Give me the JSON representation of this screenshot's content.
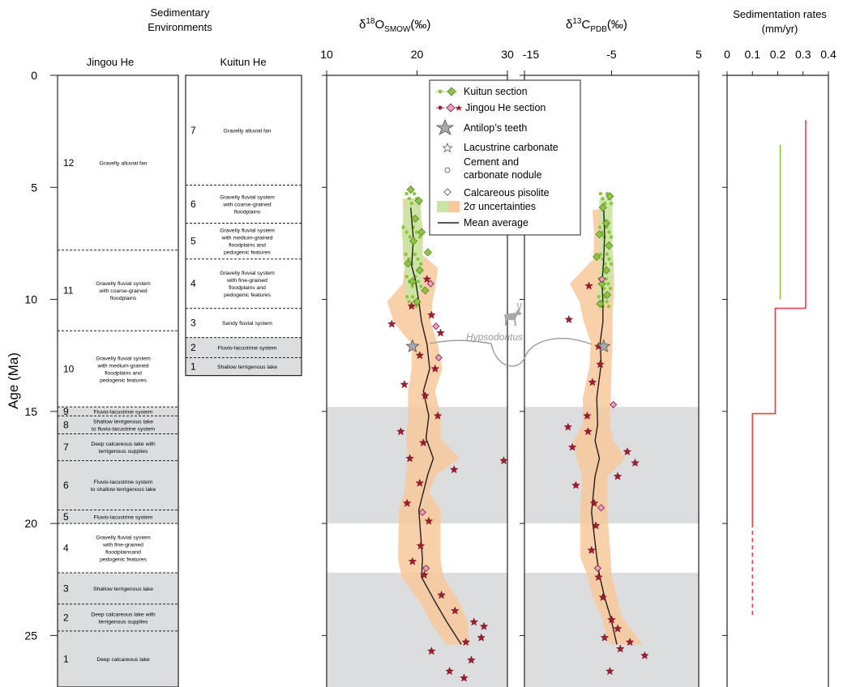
{
  "headers": {
    "sed_env_line1": "Sedimentary",
    "sed_env_line2": "Environments",
    "jingou": "Jingou He",
    "kuitun": "Kuitun He",
    "d18o": "δ18OSMOW(‰)",
    "d13c": "δ13CPDB(‰)",
    "sed_rates_line1": "Sedimentation rates",
    "sed_rates_line2": "(mm/yr)",
    "age_axis": "Age (Ma)"
  },
  "age_ticks": [
    "0",
    "5",
    "10",
    "15",
    "20",
    "25"
  ],
  "jingou_units": [
    {
      "num": "12",
      "text": [
        "Gravelly alluvial fan"
      ],
      "top": 0,
      "bottom": 7.8,
      "shade": false
    },
    {
      "num": "11",
      "text": [
        "Gravelly fluvial system",
        "with coarse-grained",
        "floodplains"
      ],
      "top": 7.8,
      "bottom": 11.4,
      "shade": false
    },
    {
      "num": "10",
      "text": [
        "Gravelly fluvial system",
        "with medium-grained",
        "floodplains and",
        "pedogenic features"
      ],
      "top": 11.4,
      "bottom": 14.8,
      "shade": false
    },
    {
      "num": "9",
      "text": [
        "Fluvio-lacustrine system"
      ],
      "top": 14.8,
      "bottom": 15.2,
      "shade": true
    },
    {
      "num": "8",
      "text": [
        "Shallow terrigenous lake",
        "to fluvio-lacustrine system"
      ],
      "top": 15.2,
      "bottom": 16.0,
      "shade": true
    },
    {
      "num": "7",
      "text": [
        "Deep calcareous lake with",
        "terrigenous supplies"
      ],
      "top": 16.0,
      "bottom": 17.2,
      "shade": true
    },
    {
      "num": "6",
      "text": [
        "Fluvio-lacustrine system",
        "to shallow terrigenous lake"
      ],
      "top": 17.2,
      "bottom": 19.4,
      "shade": true
    },
    {
      "num": "5",
      "text": [
        "Fluvio-lacustrine system"
      ],
      "top": 19.4,
      "bottom": 20.0,
      "shade": true
    },
    {
      "num": "4",
      "text": [
        "Gravelly fluvial system",
        "with fine-grained",
        "floodplainsand",
        "pedogenic features"
      ],
      "top": 20.0,
      "bottom": 22.2,
      "shade": false
    },
    {
      "num": "3",
      "text": [
        "Shallow terrigenous lake"
      ],
      "top": 22.2,
      "bottom": 23.6,
      "shade": true
    },
    {
      "num": "2",
      "text": [
        "Deep calcareous lake with",
        "terrigenous supplies"
      ],
      "top": 23.6,
      "bottom": 24.8,
      "shade": true
    },
    {
      "num": "1",
      "text": [
        "Deep calcareous lake"
      ],
      "top": 24.8,
      "bottom": 27.3,
      "shade": true
    }
  ],
  "kuitun_units": [
    {
      "num": "7",
      "text": [
        "Gravelly alluvial fan"
      ],
      "top": 0,
      "bottom": 4.9,
      "shade": false
    },
    {
      "num": "6",
      "text": [
        "Gravelly fluvial system",
        "with coarse-grained",
        "floodplains"
      ],
      "top": 4.9,
      "bottom": 6.6,
      "shade": false
    },
    {
      "num": "5",
      "text": [
        "Gravelly fluvial system",
        "with medium-grained",
        "floodplains and",
        "pedogenic features"
      ],
      "top": 6.6,
      "bottom": 8.2,
      "shade": false
    },
    {
      "num": "4",
      "text": [
        "Gravelly fluvial system",
        "with fine-grained",
        "floodplains and",
        "pedogenic features"
      ],
      "top": 8.2,
      "bottom": 10.4,
      "shade": false
    },
    {
      "num": "3",
      "text": [
        "Sandy fluvial system"
      ],
      "top": 10.4,
      "bottom": 11.7,
      "shade": false
    },
    {
      "num": "2",
      "text": [
        "Fluvio-lacustrine system"
      ],
      "top": 11.7,
      "bottom": 12.6,
      "shade": true
    },
    {
      "num": "1",
      "text": [
        "Shallow terrigenous lake"
      ],
      "top": 12.6,
      "bottom": 13.4,
      "shade": true
    }
  ],
  "chart_data": [
    {
      "type": "scatter",
      "title": "δ18O SMOW (‰)",
      "xlabel": "δ18O SMOW (‰)",
      "ylabel": "Age (Ma)",
      "xlim": [
        10,
        30
      ],
      "ylim": [
        0,
        27.3
      ],
      "x_ticks": [
        "10",
        "20",
        "30"
      ],
      "series": [
        {
          "name": "Kuitun section",
          "color": "#8cc63f",
          "marker": "diamond",
          "points": [
            [
              19.3,
              5.1
            ],
            [
              20.2,
              5.6
            ],
            [
              19.8,
              6.4
            ],
            [
              20.5,
              7.0
            ],
            [
              19.6,
              7.4
            ],
            [
              21.2,
              7.9
            ],
            [
              19.0,
              8.4
            ],
            [
              20.3,
              8.7
            ],
            [
              19.5,
              9.2
            ],
            [
              20.9,
              9.6
            ],
            [
              20.0,
              10.1
            ]
          ]
        },
        {
          "name": "Jingou He section",
          "color": "#a6192e",
          "marker": "star",
          "points": [
            [
              21.1,
              9.1
            ],
            [
              19.4,
              10.3
            ],
            [
              21.6,
              10.7
            ],
            [
              17.2,
              11.1
            ],
            [
              22.6,
              11.5
            ],
            [
              20.3,
              12.5
            ],
            [
              22.0,
              13.1
            ],
            [
              18.6,
              13.8
            ],
            [
              20.9,
              14.3
            ],
            [
              22.3,
              15.2
            ],
            [
              18.2,
              15.9
            ],
            [
              20.7,
              16.4
            ],
            [
              19.2,
              17.1
            ],
            [
              24.1,
              17.6
            ],
            [
              29.6,
              17.2
            ],
            [
              20.3,
              18.2
            ],
            [
              18.9,
              19.1
            ],
            [
              21.3,
              19.9
            ],
            [
              20.4,
              21.0
            ],
            [
              19.5,
              21.7
            ],
            [
              20.8,
              22.3
            ],
            [
              22.7,
              23.2
            ],
            [
              24.2,
              23.9
            ],
            [
              26.3,
              24.4
            ],
            [
              27.4,
              24.6
            ],
            [
              25.4,
              25.3
            ],
            [
              27.1,
              25.1
            ],
            [
              21.6,
              25.7
            ],
            [
              26.0,
              26.1
            ],
            [
              23.6,
              26.6
            ],
            [
              25.2,
              26.9
            ]
          ]
        },
        {
          "name": "Calcareous pisolite",
          "color": "#e8a0c4",
          "marker": "diamond",
          "points": [
            [
              21.5,
              9.3
            ],
            [
              22.1,
              11.2
            ],
            [
              22.4,
              12.6
            ],
            [
              20.6,
              19.5
            ],
            [
              21.0,
              22.0
            ]
          ]
        }
      ],
      "mean_average": [
        [
          19.3,
          5.9
        ],
        [
          19.6,
          7.3
        ],
        [
          19.4,
          8.5
        ],
        [
          19.8,
          9.1
        ],
        [
          20.2,
          10.1
        ],
        [
          20.5,
          11.0
        ],
        [
          21.1,
          12.0
        ],
        [
          21.4,
          13.1
        ],
        [
          20.7,
          14.1
        ],
        [
          21.3,
          15.2
        ],
        [
          21.0,
          16.2
        ],
        [
          21.8,
          17.1
        ],
        [
          21.2,
          17.8
        ],
        [
          20.7,
          18.6
        ],
        [
          20.2,
          19.4
        ],
        [
          20.6,
          21.6
        ],
        [
          20.5,
          22.4
        ],
        [
          22.0,
          23.5
        ],
        [
          23.3,
          24.4
        ],
        [
          24.9,
          25.4
        ]
      ],
      "uncertainty_band": {
        "ages": [
          5.5,
          7.0,
          8.0,
          8.6,
          9.3,
          10.1,
          11.0,
          12.0,
          13.1,
          14.1,
          15.2,
          16.2,
          17.1,
          17.8,
          18.6,
          19.4,
          21.6,
          22.4,
          23.5,
          24.4,
          25.4
        ],
        "left": [
          18.4,
          18.5,
          18.4,
          18.6,
          18.4,
          16.7,
          17.4,
          19.4,
          19.4,
          19.0,
          19.0,
          18.8,
          19.0,
          18.8,
          18.6,
          18.0,
          17.9,
          18.3,
          20.3,
          21.5,
          23.2
        ],
        "right": [
          20.2,
          20.7,
          20.6,
          22.3,
          22.1,
          21.7,
          21.5,
          22.3,
          22.8,
          22.0,
          22.6,
          22.6,
          24.7,
          22.2,
          21.3,
          22.6,
          22.6,
          22.9,
          24.7,
          25.6,
          25.8
        ]
      },
      "kuitun_band": {
        "ages": [
          5.5,
          7.0,
          8.2,
          9.2,
          10.1
        ],
        "left": [
          18.7,
          18.3,
          18.6,
          18.7,
          18.8
        ],
        "right": [
          20.4,
          20.5,
          20.6,
          20.6,
          20.0
        ]
      },
      "antilop_teeth": [
        [
          19.5,
          12.1
        ]
      ]
    },
    {
      "type": "scatter",
      "title": "δ13C PDB (‰)",
      "xlabel": "δ13C PDB (‰)",
      "ylabel": "Age (Ma)",
      "xlim": [
        -15,
        5
      ],
      "ylim": [
        0,
        27.3
      ],
      "x_ticks": [
        "-15",
        "-5",
        "5"
      ],
      "series": [
        {
          "name": "Kuitun section",
          "color": "#8cc63f",
          "marker": "diamond",
          "points": [
            [
              -5.2,
              5.4
            ],
            [
              -6.0,
              5.9
            ],
            [
              -5.6,
              6.6
            ],
            [
              -6.4,
              7.1
            ],
            [
              -5.3,
              7.6
            ],
            [
              -6.7,
              8.1
            ],
            [
              -5.6,
              8.7
            ],
            [
              -6.1,
              9.3
            ],
            [
              -5.5,
              9.8
            ],
            [
              -6.3,
              10.2
            ]
          ]
        },
        {
          "name": "Jingou He section",
          "color": "#a6192e",
          "marker": "star",
          "points": [
            [
              -7.6,
              9.4
            ],
            [
              -9.9,
              10.9
            ],
            [
              -6.5,
              12.1
            ],
            [
              -6.3,
              12.9
            ],
            [
              -7.2,
              13.7
            ],
            [
              -7.8,
              15.2
            ],
            [
              -10.0,
              15.7
            ],
            [
              -7.7,
              15.9
            ],
            [
              -9.5,
              16.6
            ],
            [
              -3.2,
              16.8
            ],
            [
              -2.3,
              17.3
            ],
            [
              -4.3,
              17.9
            ],
            [
              -9.1,
              18.3
            ],
            [
              -7.0,
              19.1
            ],
            [
              -6.8,
              20.1
            ],
            [
              -7.3,
              21.2
            ],
            [
              -6.5,
              22.4
            ],
            [
              -6.0,
              23.3
            ],
            [
              -5.0,
              24.3
            ],
            [
              -4.3,
              24.7
            ],
            [
              -5.8,
              25.1
            ],
            [
              -2.9,
              25.3
            ],
            [
              -4.0,
              25.6
            ],
            [
              -1.2,
              25.9
            ],
            [
              -5.2,
              26.6
            ]
          ]
        },
        {
          "name": "Calcareous pisolite",
          "color": "#e8a0c4",
          "marker": "diamond",
          "points": [
            [
              -6.1,
              9.1
            ],
            [
              -4.8,
              14.7
            ],
            [
              -6.2,
              19.3
            ],
            [
              -6.6,
              22.0
            ]
          ]
        }
      ],
      "mean_average": [
        [
          -5.9,
          6.0
        ],
        [
          -5.8,
          7.1
        ],
        [
          -5.9,
          8.2
        ],
        [
          -6.1,
          9.3
        ],
        [
          -6.0,
          10.1
        ],
        [
          -6.0,
          11.0
        ],
        [
          -6.3,
          11.9
        ],
        [
          -6.2,
          12.9
        ],
        [
          -6.7,
          14.4
        ],
        [
          -6.6,
          15.6
        ],
        [
          -6.9,
          16.3
        ],
        [
          -6.4,
          17.1
        ],
        [
          -6.9,
          17.9
        ],
        [
          -7.3,
          19.5
        ],
        [
          -6.7,
          21.5
        ],
        [
          -6.4,
          22.3
        ],
        [
          -5.8,
          23.3
        ],
        [
          -5.1,
          24.2
        ],
        [
          -4.4,
          25.4
        ]
      ],
      "uncertainty_band": {
        "ages": [
          6.0,
          7.1,
          8.2,
          9.3,
          10.1,
          11.0,
          11.9,
          12.9,
          14.4,
          15.6,
          16.3,
          17.1,
          17.9,
          19.5,
          21.5,
          22.3,
          23.3,
          24.2,
          25.4
        ],
        "left": [
          -7.2,
          -7.0,
          -7.1,
          -9.8,
          -8.7,
          -8.2,
          -7.4,
          -7.5,
          -8.3,
          -8.3,
          -9.4,
          -9.0,
          -8.4,
          -8.6,
          -8.6,
          -7.8,
          -7.2,
          -6.1,
          -5.3
        ],
        "right": [
          -5.1,
          -5.0,
          -4.8,
          -4.7,
          -4.8,
          -4.9,
          -4.9,
          -5.0,
          -5.1,
          -5.2,
          -4.8,
          -3.4,
          -5.5,
          -5.5,
          -5.1,
          -5.0,
          -4.4,
          -3.8,
          -1.4
        ]
      },
      "kuitun_band": {
        "ages": [
          5.5,
          7.0,
          8.2,
          9.3,
          10.1
        ],
        "left": [
          -6.4,
          -6.5,
          -6.4,
          -6.5,
          -6.6
        ],
        "right": [
          -4.9,
          -4.9,
          -4.9,
          -5.0,
          -5.2
        ]
      },
      "antilop_teeth": [
        [
          -5.9,
          12.1
        ]
      ]
    },
    {
      "type": "line",
      "title": "Sedimentation rates (mm/yr)",
      "xlabel": "Sedimentation rates (mm/yr)",
      "ylabel": "Age (Ma)",
      "xlim": [
        0,
        0.4
      ],
      "ylim": [
        0,
        27.3
      ],
      "x_ticks": [
        "0",
        "0.1",
        "0.2",
        "0.3",
        "0.4"
      ],
      "series": [
        {
          "name": "Kuitun",
          "color": "#8cc63f",
          "points": [
            [
              0.21,
              3.1
            ],
            [
              0.21,
              10.0
            ]
          ]
        },
        {
          "name": "Jingou He",
          "color": "#e8434b",
          "points": [
            [
              0.31,
              2.0
            ],
            [
              0.31,
              10.4
            ],
            [
              0.19,
              10.4
            ],
            [
              0.19,
              15.1
            ],
            [
              0.1,
              15.1
            ],
            [
              0.1,
              20.0
            ]
          ]
        },
        {
          "name": "Jingou He (inferred)",
          "color": "#e8434b",
          "dashed": true,
          "points": [
            [
              0.1,
              20.0
            ],
            [
              0.1,
              24.2
            ]
          ]
        }
      ]
    }
  ],
  "shaded_intervals": [
    [
      14.8,
      20.0
    ],
    [
      22.2,
      27.3
    ]
  ],
  "legend": {
    "kuitun": "Kuitun section",
    "jingou": "Jingou He section",
    "antilop": "Antilop’s teeth",
    "lacustrine": "Lacustrine carbonate",
    "cement1": "Cement and",
    "cement2": "carbonate nodule",
    "pisolite": "Calcareous pisolite",
    "uncert": "2σ uncertainties",
    "mean": "Mean average"
  },
  "annotation": {
    "hypsodontus": "Hypsodontus"
  },
  "colors": {
    "kuitun_green": "#8cc63f",
    "jingou_red": "#a6192e",
    "pisolite_pink": "#e8a0c4",
    "band_orange": "#f7c89a",
    "band_green": "#c9e6a3",
    "shade_gray": "#dcdddf",
    "rate_red": "#e8434b"
  }
}
